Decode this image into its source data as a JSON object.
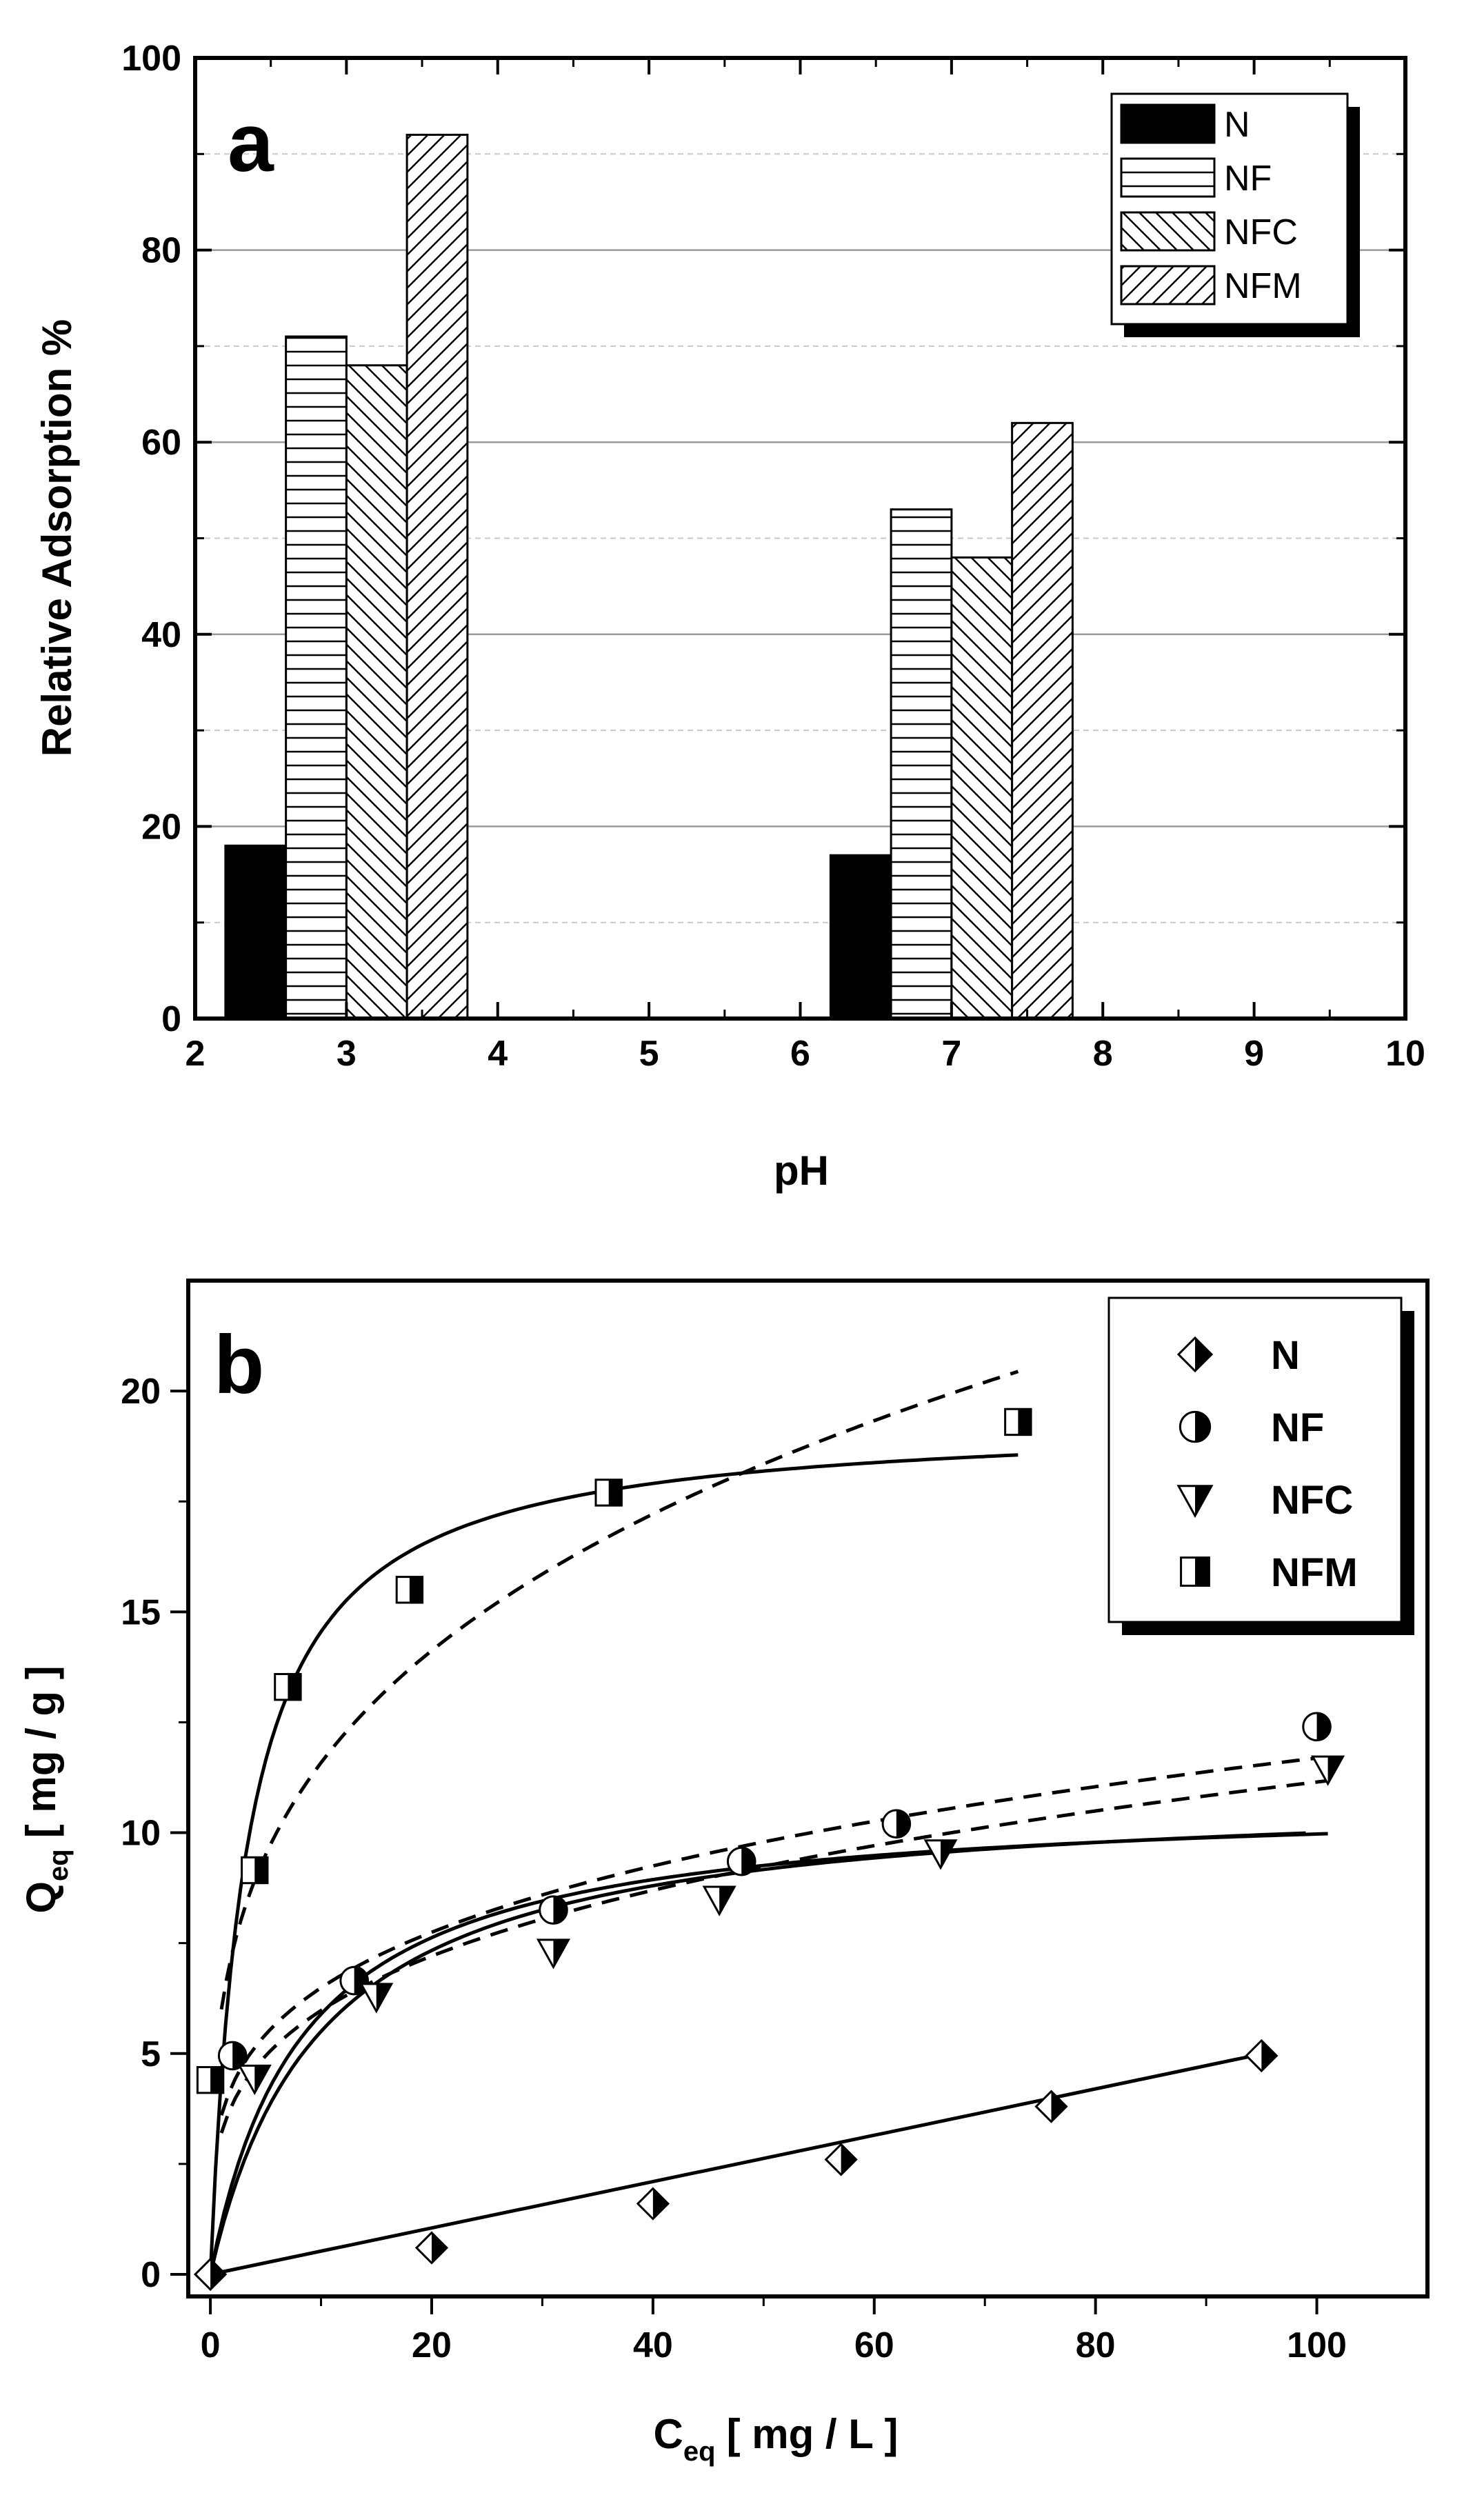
{
  "chart_data": [
    {
      "type": "bar",
      "panel_label": "a",
      "title": "",
      "xlabel": "pH",
      "ylabel": "Relative Adsorption %",
      "xlim": [
        2,
        10
      ],
      "ylim": [
        0,
        100
      ],
      "x_ticks": [
        "2",
        "3",
        "4",
        "5",
        "6",
        "7",
        "8",
        "9",
        "10"
      ],
      "y_ticks": [
        "0",
        "20",
        "40",
        "60",
        "80",
        "100"
      ],
      "grid": "horizontal",
      "legend_position": "top-right",
      "bar_width": 0.4,
      "group_centers": [
        3,
        7
      ],
      "series": [
        {
          "name": "N",
          "pattern": "solid",
          "values": [
            18,
            17
          ]
        },
        {
          "name": "NF",
          "pattern": "horizontal",
          "values": [
            71,
            53
          ]
        },
        {
          "name": "NFC",
          "pattern": "backslash",
          "values": [
            68,
            48
          ]
        },
        {
          "name": "NFM",
          "pattern": "slash",
          "values": [
            92,
            62
          ]
        }
      ]
    },
    {
      "type": "scatter",
      "panel_label": "b",
      "title": "",
      "xlabel": "C",
      "xlabel_sub": "eq",
      "xlabel_unit": "[ mg / L ]",
      "ylabel": "Q",
      "ylabel_sub": "eq",
      "ylabel_unit": "[ mg / g ]",
      "xlim": [
        -2,
        110
      ],
      "ylim": [
        -0.5,
        22.5
      ],
      "x_ticks": [
        "0",
        "20",
        "40",
        "60",
        "80",
        "100"
      ],
      "y_ticks": [
        "0",
        "5",
        "10",
        "15",
        "20"
      ],
      "grid": "none",
      "legend_position": "top-right",
      "series": [
        {
          "name": "N",
          "marker": "diamond-half",
          "x": [
            0,
            20,
            40,
            57,
            76,
            95
          ],
          "y": [
            0,
            0.6,
            1.6,
            2.6,
            3.8,
            4.95
          ]
        },
        {
          "name": "NF",
          "marker": "circle-half",
          "x": [
            2,
            13,
            31,
            48,
            62,
            100
          ],
          "y": [
            4.95,
            6.65,
            8.25,
            9.35,
            10.2,
            12.4
          ]
        },
        {
          "name": "NFC",
          "marker": "triangle-down-half",
          "x": [
            4,
            15,
            31,
            46,
            66,
            101
          ],
          "y": [
            4.45,
            6.3,
            7.3,
            8.5,
            9.55,
            11.45
          ]
        },
        {
          "name": "NFM",
          "marker": "square-half",
          "x": [
            0,
            4,
            7,
            18,
            36,
            73
          ],
          "y": [
            4.4,
            9.15,
            13.3,
            15.5,
            17.7,
            19.3
          ]
        }
      ],
      "fits": [
        {
          "series": "N",
          "model": "linear",
          "style": "solid",
          "x_range": [
            0,
            95
          ],
          "params": {
            "slope": 0.0525,
            "intercept": 0
          }
        },
        {
          "series": "NF",
          "model": "langmuir",
          "style": "solid",
          "x_range": [
            0,
            99
          ],
          "params": {
            "qmax": 11.0,
            "K": 0.1
          }
        },
        {
          "series": "NF",
          "model": "freundlich",
          "style": "dashed",
          "x_range": [
            1,
            100
          ],
          "params": {
            "Kf": 3.6,
            "n": 3.91
          }
        },
        {
          "series": "NFC",
          "model": "langmuir",
          "style": "solid",
          "x_range": [
            0,
            101
          ],
          "params": {
            "qmax": 10.8,
            "K": 0.12
          }
        },
        {
          "series": "NFC",
          "model": "freundlich",
          "style": "dashed",
          "x_range": [
            1,
            101
          ],
          "params": {
            "Kf": 3.2,
            "n": 3.69
          }
        },
        {
          "series": "NFM",
          "model": "langmuir",
          "style": "solid",
          "x_range": [
            0,
            73
          ],
          "params": {
            "qmax": 19.4,
            "K": 0.3
          }
        },
        {
          "series": "NFM",
          "model": "freundlich",
          "style": "dashed",
          "x_range": [
            1,
            73
          ],
          "params": {
            "Kf": 6.0,
            "n": 3.5
          }
        }
      ]
    }
  ]
}
